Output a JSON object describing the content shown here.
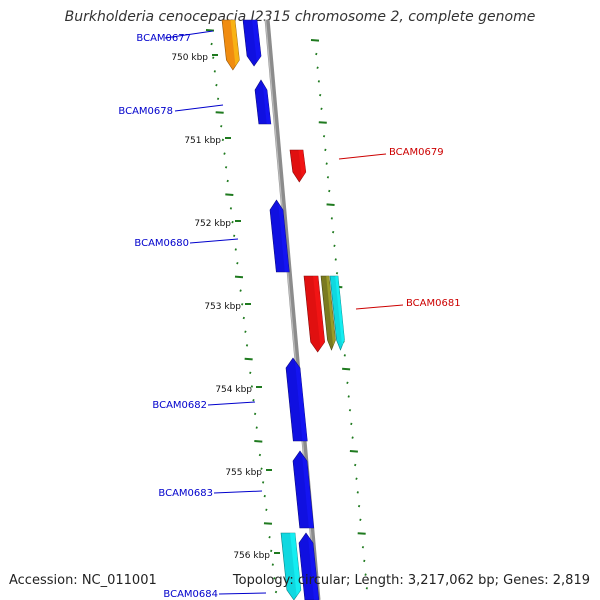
{
  "title": "Burkholderia cenocepacia J2315 chromosome 2, complete genome",
  "footer": {
    "accession": "Accession: NC_011001",
    "topology": "Topology: circular; Length: 3,217,062 bp; Genes: 2,819"
  },
  "colors": {
    "backbone": "#8c8c8c",
    "tick": "#1f7a1f",
    "gene_blue": "#1010e0",
    "gene_red": "#e01010",
    "gene_orange": "#f08c10",
    "gene_cyan": "#10d8e0",
    "gene_olive": "#7a7a20",
    "label_blue": "#0000cc",
    "label_red": "#cc0000"
  },
  "kbp_labels": [
    "750 kbp",
    "751 kbp",
    "752 kbp",
    "753 kbp",
    "754 kbp",
    "755 kbp",
    "756 kbp"
  ],
  "gene_labels": [
    {
      "text": "BCAM0677",
      "color": "label_blue"
    },
    {
      "text": "BCAM0678",
      "color": "label_blue"
    },
    {
      "text": "BCAM0679",
      "color": "label_red"
    },
    {
      "text": "BCAM0680",
      "color": "label_blue"
    },
    {
      "text": "BCAM0681",
      "color": "label_red"
    },
    {
      "text": "BCAM0682",
      "color": "label_blue"
    },
    {
      "text": "BCAM0683",
      "color": "label_blue"
    },
    {
      "text": "BCAM0684",
      "color": "label_blue"
    }
  ]
}
